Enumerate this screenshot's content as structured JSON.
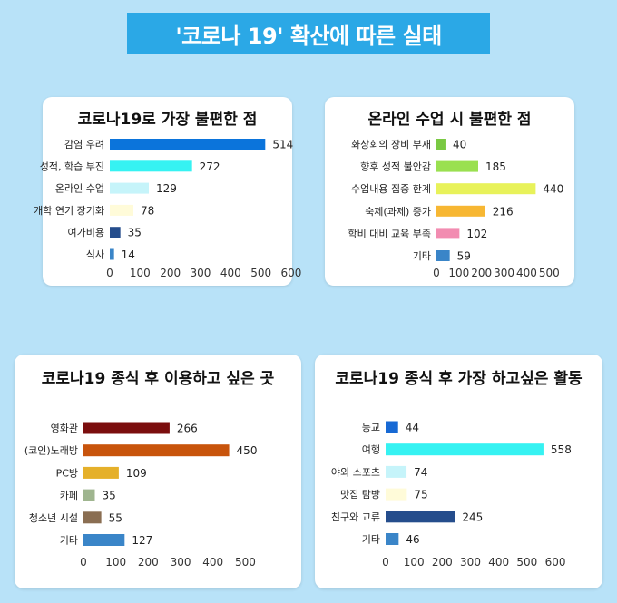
{
  "banner": {
    "title": "'코로나 19' 확산에 따른 실태"
  },
  "chart_data": [
    {
      "type": "bar",
      "orientation": "horizontal",
      "title": "코로나19로 가장 불편한 점",
      "categories": [
        "감염 우려",
        "성적, 학습 부진",
        "온라인 수업",
        "개학 연기 장기화",
        "여가비용",
        "식사"
      ],
      "values": [
        514,
        272,
        129,
        78,
        35,
        14
      ],
      "colors": [
        "#0b74db",
        "#36f2f2",
        "#c6f4fa",
        "#fffbd9",
        "#254d8c",
        "#3a85c8"
      ],
      "xticks": [
        0,
        100,
        200,
        300,
        400,
        500,
        600
      ],
      "xlim": [
        0,
        600
      ]
    },
    {
      "type": "bar",
      "orientation": "horizontal",
      "title": "온라인 수업 시 불편한 점",
      "categories": [
        "화상회의 장비 부재",
        "향후 성적 불안감",
        "수업내용 집중 한계",
        "숙제(과제) 증가",
        "학비 대비 교육 부족",
        "기타"
      ],
      "values": [
        40,
        185,
        440,
        216,
        102,
        59
      ],
      "colors": [
        "#7ac943",
        "#9ae050",
        "#e8f25a",
        "#f7b733",
        "#f28cb1",
        "#3a85c8"
      ],
      "xticks": [
        0,
        100,
        200,
        300,
        400,
        500
      ],
      "xlim": [
        0,
        500
      ]
    },
    {
      "type": "bar",
      "orientation": "horizontal",
      "title": "코로나19 종식 후 이용하고 싶은 곳",
      "categories": [
        "영화관",
        "(코인)노래방",
        "PC방",
        "카페",
        "청소년 시설",
        "기타"
      ],
      "values": [
        266,
        450,
        109,
        35,
        55,
        127
      ],
      "colors": [
        "#7b0e0e",
        "#c8540c",
        "#e5b02a",
        "#9fb58f",
        "#8a6e52",
        "#3a85c8"
      ],
      "xticks": [
        0,
        100,
        200,
        300,
        400,
        500
      ],
      "xlim": [
        0,
        500
      ]
    },
    {
      "type": "bar",
      "orientation": "horizontal",
      "title": "코로나19 종식 후 가장 하고싶은 활동",
      "categories": [
        "등교",
        "여행",
        "야외 스포츠",
        "맛집 탐방",
        "친구와 교류",
        "기타"
      ],
      "values": [
        44,
        558,
        74,
        75,
        245,
        46
      ],
      "colors": [
        "#1769d4",
        "#36f2f2",
        "#c6f4fa",
        "#fffbd9",
        "#254d8c",
        "#3a85c8"
      ],
      "xticks": [
        0,
        100,
        200,
        300,
        400,
        500,
        600
      ],
      "xlim": [
        0,
        600
      ]
    }
  ]
}
